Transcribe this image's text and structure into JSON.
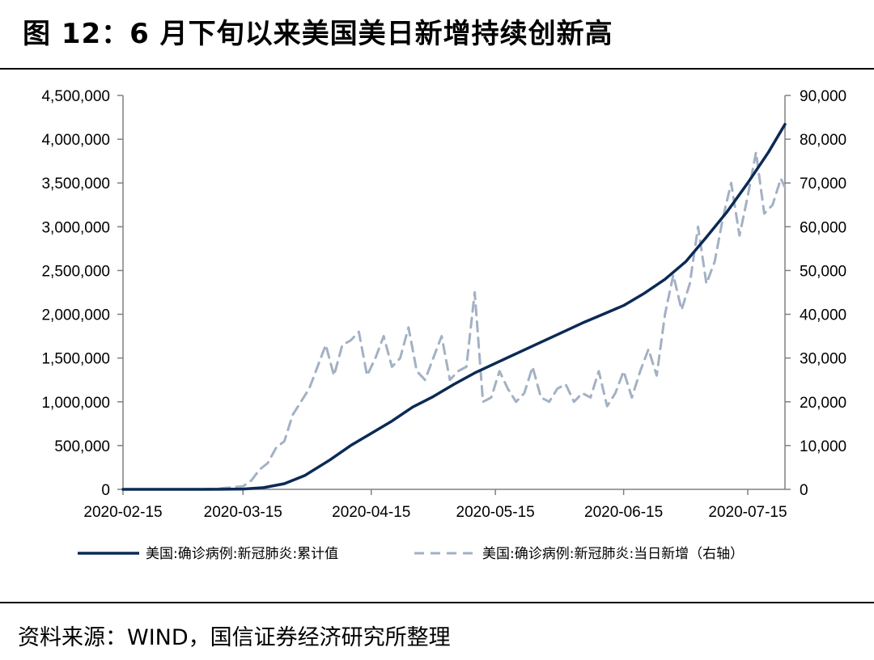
{
  "title": "图 12：6 月下旬以来美国美日新增持续创新高",
  "source": "资料来源：WIND，国信证券经济研究所整理",
  "colors": {
    "cumulative": "#0b2a55",
    "daily": "#a3b1c4",
    "axis": "#808080"
  },
  "chart_data": {
    "type": "line",
    "x_ticks": [
      "2020-02-15",
      "2020-03-15",
      "2020-04-15",
      "2020-05-15",
      "2020-06-15",
      "2020-07-15"
    ],
    "x_range": [
      "2020-02-15",
      "2020-07-24"
    ],
    "y_left": {
      "range": [
        0,
        4500000
      ],
      "ticks": [
        "0",
        "500,000",
        "1,000,000",
        "1,500,000",
        "2,000,000",
        "2,500,000",
        "3,000,000",
        "3,500,000",
        "4,000,000",
        "4,500,000"
      ]
    },
    "y_right": {
      "range": [
        0,
        90000
      ],
      "ticks": [
        "0",
        "10,000",
        "20,000",
        "30,000",
        "40,000",
        "50,000",
        "60,000",
        "70,000",
        "80,000",
        "90,000"
      ]
    },
    "legend_position": "bottom",
    "series": [
      {
        "name": "美国:确诊病例:新冠肺炎:累计值",
        "axis": "left",
        "style": "solid",
        "points": [
          [
            "2020-02-15",
            15
          ],
          [
            "2020-03-01",
            75
          ],
          [
            "2020-03-10",
            1000
          ],
          [
            "2020-03-15",
            3500
          ],
          [
            "2020-03-20",
            19000
          ],
          [
            "2020-03-25",
            65000
          ],
          [
            "2020-03-30",
            160000
          ],
          [
            "2020-04-05",
            335000
          ],
          [
            "2020-04-10",
            500000
          ],
          [
            "2020-04-15",
            640000
          ],
          [
            "2020-04-20",
            780000
          ],
          [
            "2020-04-25",
            940000
          ],
          [
            "2020-04-30",
            1060000
          ],
          [
            "2020-05-05",
            1200000
          ],
          [
            "2020-05-10",
            1330000
          ],
          [
            "2020-05-15",
            1440000
          ],
          [
            "2020-05-20",
            1550000
          ],
          [
            "2020-05-25",
            1660000
          ],
          [
            "2020-05-31",
            1790000
          ],
          [
            "2020-06-05",
            1900000
          ],
          [
            "2020-06-10",
            2000000
          ],
          [
            "2020-06-15",
            2100000
          ],
          [
            "2020-06-20",
            2240000
          ],
          [
            "2020-06-25",
            2400000
          ],
          [
            "2020-06-30",
            2600000
          ],
          [
            "2020-07-05",
            2880000
          ],
          [
            "2020-07-10",
            3170000
          ],
          [
            "2020-07-15",
            3500000
          ],
          [
            "2020-07-20",
            3850000
          ],
          [
            "2020-07-24",
            4170000
          ]
        ]
      },
      {
        "name": "美国:确诊病例:新冠肺炎:当日新增（右轴）",
        "axis": "right",
        "style": "dashed",
        "points": [
          [
            "2020-02-15",
            0
          ],
          [
            "2020-03-01",
            5
          ],
          [
            "2020-03-08",
            100
          ],
          [
            "2020-03-15",
            700
          ],
          [
            "2020-03-17",
            2000
          ],
          [
            "2020-03-19",
            4500
          ],
          [
            "2020-03-21",
            6000
          ],
          [
            "2020-03-23",
            9500
          ],
          [
            "2020-03-25",
            11000
          ],
          [
            "2020-03-27",
            17000
          ],
          [
            "2020-03-29",
            20000
          ],
          [
            "2020-03-31",
            23000
          ],
          [
            "2020-04-02",
            28000
          ],
          [
            "2020-04-04",
            33000
          ],
          [
            "2020-04-06",
            26000
          ],
          [
            "2020-04-08",
            33000
          ],
          [
            "2020-04-10",
            34000
          ],
          [
            "2020-04-12",
            36000
          ],
          [
            "2020-04-14",
            26000
          ],
          [
            "2020-04-16",
            30000
          ],
          [
            "2020-04-18",
            35000
          ],
          [
            "2020-04-20",
            28000
          ],
          [
            "2020-04-22",
            30000
          ],
          [
            "2020-04-24",
            37000
          ],
          [
            "2020-04-26",
            27000
          ],
          [
            "2020-04-28",
            25000
          ],
          [
            "2020-04-30",
            30000
          ],
          [
            "2020-05-02",
            35000
          ],
          [
            "2020-05-04",
            25000
          ],
          [
            "2020-05-06",
            27000
          ],
          [
            "2020-05-08",
            28000
          ],
          [
            "2020-05-10",
            45000
          ],
          [
            "2020-05-12",
            20000
          ],
          [
            "2020-05-14",
            21000
          ],
          [
            "2020-05-16",
            27000
          ],
          [
            "2020-05-18",
            23000
          ],
          [
            "2020-05-20",
            20000
          ],
          [
            "2020-05-22",
            22000
          ],
          [
            "2020-05-24",
            28000
          ],
          [
            "2020-05-26",
            21000
          ],
          [
            "2020-05-28",
            20000
          ],
          [
            "2020-05-30",
            23000
          ],
          [
            "2020-06-01",
            24000
          ],
          [
            "2020-06-03",
            20000
          ],
          [
            "2020-06-05",
            22000
          ],
          [
            "2020-06-07",
            21000
          ],
          [
            "2020-06-09",
            27000
          ],
          [
            "2020-06-11",
            19000
          ],
          [
            "2020-06-13",
            22000
          ],
          [
            "2020-06-15",
            27000
          ],
          [
            "2020-06-17",
            21000
          ],
          [
            "2020-06-19",
            27000
          ],
          [
            "2020-06-21",
            32000
          ],
          [
            "2020-06-23",
            26000
          ],
          [
            "2020-06-25",
            40000
          ],
          [
            "2020-06-27",
            49000
          ],
          [
            "2020-06-29",
            41000
          ],
          [
            "2020-07-01",
            47000
          ],
          [
            "2020-07-03",
            60000
          ],
          [
            "2020-07-05",
            47000
          ],
          [
            "2020-07-07",
            52000
          ],
          [
            "2020-07-09",
            62000
          ],
          [
            "2020-07-11",
            70000
          ],
          [
            "2020-07-13",
            58000
          ],
          [
            "2020-07-15",
            67000
          ],
          [
            "2020-07-17",
            77000
          ],
          [
            "2020-07-19",
            63000
          ],
          [
            "2020-07-21",
            65000
          ],
          [
            "2020-07-23",
            71000
          ],
          [
            "2020-07-24",
            69000
          ]
        ]
      }
    ]
  }
}
